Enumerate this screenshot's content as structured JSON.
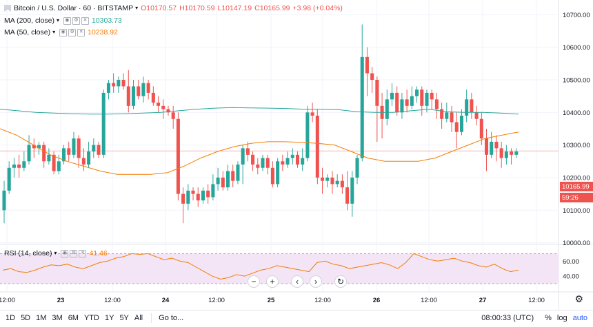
{
  "symbol": {
    "title": "Bitcoin / U.S. Dollar · 60 · BITSTAMP",
    "open": "O10170.57",
    "high": "H10170.59",
    "low": "L10147.19",
    "close": "C10165.99",
    "change": "+3.98 (+0.04%)"
  },
  "indicators": {
    "ma200": {
      "label": "MA (200, close)",
      "value": "10303.73",
      "color": "#26a69a"
    },
    "ma50": {
      "label": "MA (50, close)",
      "value": "10238.92",
      "color": "#f57c00"
    },
    "rsi": {
      "label": "RSI (14, close)",
      "value": "41.46",
      "color": "#f57c00"
    }
  },
  "price_axis": {
    "ticks": [
      "10700.00",
      "10600.00",
      "10500.00",
      "10400.00",
      "10300.00",
      "10200.00",
      "10100.00",
      "10000.00"
    ],
    "last_price": "10165.99",
    "countdown": "59:26"
  },
  "rsi_axis": {
    "ticks": [
      "60.00",
      "40.00"
    ]
  },
  "time_axis": {
    "labels": [
      "12:00",
      "23",
      "12:00",
      "24",
      "12:00",
      "25",
      "12:00",
      "26",
      "12:00",
      "27",
      "12:00"
    ]
  },
  "nav": {
    "zoom_out": "−",
    "zoom_in": "+",
    "left": "‹",
    "right": "›",
    "reset": "↻"
  },
  "toolbar": {
    "timeframes": [
      "1D",
      "5D",
      "1M",
      "3M",
      "6M",
      "YTD",
      "1Y",
      "5Y",
      "All"
    ],
    "goto": "Go to...",
    "time": "08:00:33 (UTC)",
    "percent": "%",
    "log": "log",
    "auto": "auto"
  },
  "colors": {
    "up": "#26a69a",
    "down": "#ef5350",
    "rsi_band": "#e1bee7"
  },
  "chart_data": {
    "type": "candlestick",
    "y_range": [
      10000,
      10700
    ],
    "candles": [
      [
        10100,
        10160,
        10060,
        10190
      ],
      [
        10160,
        10230,
        10150,
        10250
      ],
      [
        10230,
        10240,
        10200,
        10260
      ],
      [
        10240,
        10230,
        10200,
        10270
      ],
      [
        10230,
        10250,
        10220,
        10280
      ],
      [
        10250,
        10300,
        10240,
        10330
      ],
      [
        10300,
        10290,
        10260,
        10320
      ],
      [
        10290,
        10300,
        10270,
        10310
      ],
      [
        10300,
        10250,
        10230,
        10310
      ],
      [
        10250,
        10270,
        10240,
        10290
      ],
      [
        10270,
        10220,
        10210,
        10280
      ],
      [
        10220,
        10250,
        10210,
        10270
      ],
      [
        10250,
        10290,
        10240,
        10300
      ],
      [
        10290,
        10270,
        10250,
        10310
      ],
      [
        10270,
        10320,
        10260,
        10340
      ],
      [
        10320,
        10260,
        10230,
        10330
      ],
      [
        10260,
        10240,
        10220,
        10290
      ],
      [
        10240,
        10280,
        10230,
        10310
      ],
      [
        10280,
        10300,
        10260,
        10320
      ],
      [
        10300,
        10270,
        10260,
        10310
      ],
      [
        10270,
        10460,
        10260,
        10470
      ],
      [
        10460,
        10490,
        10440,
        10500
      ],
      [
        10490,
        10480,
        10460,
        10520
      ],
      [
        10480,
        10500,
        10460,
        10510
      ],
      [
        10500,
        10480,
        10470,
        10520
      ],
      [
        10480,
        10420,
        10400,
        10530
      ],
      [
        10420,
        10480,
        10410,
        10500
      ],
      [
        10480,
        10450,
        10440,
        10500
      ],
      [
        10450,
        10490,
        10430,
        10510
      ],
      [
        10490,
        10460,
        10440,
        10500
      ],
      [
        10460,
        10430,
        10420,
        10480
      ],
      [
        10430,
        10420,
        10400,
        10450
      ],
      [
        10420,
        10410,
        10380,
        10440
      ],
      [
        10410,
        10400,
        10390,
        10420
      ],
      [
        10400,
        10380,
        10350,
        10420
      ],
      [
        10380,
        10150,
        10130,
        10400
      ],
      [
        10150,
        10120,
        10060,
        10170
      ],
      [
        10120,
        10160,
        10100,
        10180
      ],
      [
        10160,
        10150,
        10130,
        10170
      ],
      [
        10150,
        10130,
        10110,
        10170
      ],
      [
        10130,
        10160,
        10120,
        10170
      ],
      [
        10160,
        10140,
        10120,
        10180
      ],
      [
        10140,
        10180,
        10130,
        10210
      ],
      [
        10180,
        10200,
        10160,
        10230
      ],
      [
        10200,
        10170,
        10160,
        10220
      ],
      [
        10170,
        10220,
        10160,
        10240
      ],
      [
        10220,
        10190,
        10170,
        10240
      ],
      [
        10190,
        10240,
        10180,
        10250
      ],
      [
        10240,
        10290,
        10180,
        10300
      ],
      [
        10290,
        10270,
        10250,
        10310
      ],
      [
        10270,
        10240,
        10220,
        10280
      ],
      [
        10240,
        10230,
        10210,
        10260
      ],
      [
        10230,
        10260,
        10220,
        10270
      ],
      [
        10260,
        10230,
        10210,
        10270
      ],
      [
        10230,
        10180,
        10170,
        10250
      ],
      [
        10180,
        10250,
        10170,
        10260
      ],
      [
        10250,
        10240,
        10220,
        10270
      ],
      [
        10240,
        10260,
        10230,
        10280
      ],
      [
        10260,
        10270,
        10240,
        10290
      ],
      [
        10270,
        10240,
        10230,
        10280
      ],
      [
        10240,
        10260,
        10220,
        10290
      ],
      [
        10260,
        10400,
        10250,
        10420
      ],
      [
        10400,
        10390,
        10370,
        10430
      ],
      [
        10390,
        10200,
        10180,
        10410
      ],
      [
        10200,
        10190,
        10150,
        10230
      ],
      [
        10190,
        10200,
        10170,
        10210
      ],
      [
        10200,
        10180,
        10150,
        10220
      ],
      [
        10180,
        10190,
        10170,
        10210
      ],
      [
        10190,
        10170,
        10150,
        10210
      ],
      [
        10170,
        10120,
        10100,
        10220
      ],
      [
        10120,
        10200,
        10080,
        10220
      ],
      [
        10200,
        10260,
        10180,
        10270
      ],
      [
        10260,
        10570,
        10250,
        10670
      ],
      [
        10570,
        10520,
        10450,
        10600
      ],
      [
        10520,
        10500,
        10460,
        10540
      ],
      [
        10500,
        10420,
        10310,
        10510
      ],
      [
        10420,
        10380,
        10320,
        10460
      ],
      [
        10380,
        10440,
        10360,
        10470
      ],
      [
        10440,
        10460,
        10420,
        10490
      ],
      [
        10460,
        10400,
        10390,
        10480
      ],
      [
        10400,
        10440,
        10380,
        10460
      ],
      [
        10440,
        10420,
        10400,
        10470
      ],
      [
        10420,
        10450,
        10410,
        10480
      ],
      [
        10450,
        10470,
        10430,
        10480
      ],
      [
        10470,
        10420,
        10390,
        10480
      ],
      [
        10420,
        10460,
        10400,
        10470
      ],
      [
        10460,
        10440,
        10410,
        10470
      ],
      [
        10440,
        10410,
        10380,
        10460
      ],
      [
        10410,
        10380,
        10350,
        10430
      ],
      [
        10380,
        10400,
        10370,
        10430
      ],
      [
        10400,
        10370,
        10340,
        10420
      ],
      [
        10370,
        10340,
        10290,
        10400
      ],
      [
        10340,
        10390,
        10330,
        10410
      ],
      [
        10390,
        10440,
        10370,
        10470
      ],
      [
        10440,
        10400,
        10380,
        10460
      ],
      [
        10400,
        10380,
        10360,
        10420
      ],
      [
        10380,
        10320,
        10300,
        10400
      ],
      [
        10320,
        10270,
        10220,
        10350
      ],
      [
        10270,
        10310,
        10260,
        10340
      ],
      [
        10310,
        10290,
        10250,
        10330
      ],
      [
        10290,
        10260,
        10230,
        10310
      ],
      [
        10260,
        10280,
        10240,
        10300
      ],
      [
        10280,
        10270,
        10240,
        10290
      ],
      [
        10270,
        10280,
        10260,
        10290
      ]
    ],
    "ma200": [
      10410,
      10405,
      10400,
      10398,
      10396,
      10395,
      10395,
      10396,
      10398,
      10400,
      10405,
      10410,
      10413,
      10415,
      10414,
      10413,
      10412,
      10410,
      10410,
      10408,
      10402,
      10400,
      10400,
      10405,
      10410,
      10402,
      10400,
      10400,
      10398,
      10395
    ],
    "ma50": [
      10350,
      10330,
      10300,
      10270,
      10250,
      10235,
      10220,
      10210,
      10210,
      10210,
      10215,
      10235,
      10260,
      10280,
      10295,
      10305,
      10310,
      10310,
      10308,
      10305,
      10300,
      10280,
      10260,
      10250,
      10250,
      10250,
      10260,
      10280,
      10300,
      10320,
      10330,
      10340
    ],
    "rsi": [
      48,
      50,
      46,
      45,
      48,
      52,
      55,
      54,
      56,
      52,
      50,
      54,
      58,
      60,
      64,
      66,
      70,
      69,
      70,
      66,
      62,
      64,
      60,
      58,
      52,
      46,
      40,
      36,
      38,
      42,
      40,
      44,
      48,
      50,
      54,
      52,
      50,
      48,
      46,
      58,
      60,
      56,
      54,
      50,
      52,
      54,
      56,
      58,
      55,
      50,
      58,
      70,
      66,
      62,
      60,
      62,
      64,
      60,
      58,
      54,
      52,
      56,
      50,
      46,
      48
    ]
  }
}
